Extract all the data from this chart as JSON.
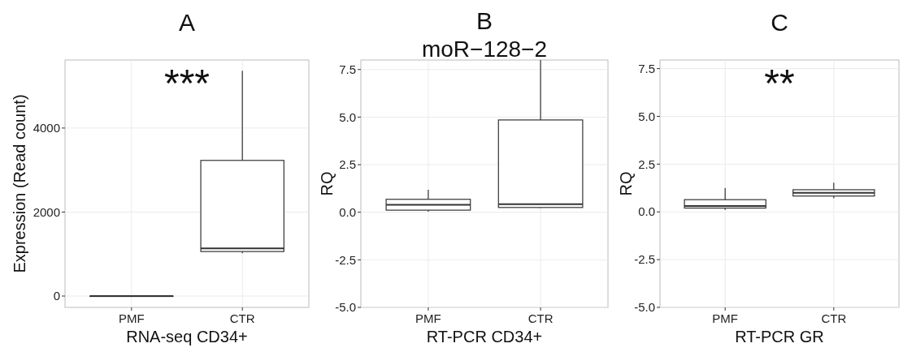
{
  "chart_data": [
    {
      "type": "box",
      "title": "A",
      "xlabel": "RNA-seq CD34+",
      "ylabel": "Expression (Read count)",
      "categories": [
        "PMF",
        "CTR"
      ],
      "ylim": [
        -270,
        5620
      ],
      "yticks": [
        0,
        2000,
        4000
      ],
      "grid": true,
      "boxes": [
        {
          "low": 0,
          "q1": 0,
          "median": 0,
          "q3": 0,
          "high": 0
        },
        {
          "low": 1020,
          "q1": 1060,
          "median": 1135,
          "q3": 3230,
          "high": 5365
        }
      ],
      "annotations": [
        "***"
      ]
    },
    {
      "type": "box",
      "title": "B",
      "subtitle": "moR−128−2",
      "xlabel": "RT-PCR CD34+",
      "ylabel": "RQ",
      "categories": [
        "PMF",
        "CTR"
      ],
      "ylim": [
        -5,
        8
      ],
      "yticks": [
        {
          "value": -5,
          "label": "-5.0"
        },
        {
          "value": -2.5,
          "label": "-2.5"
        },
        {
          "value": 0,
          "label": "0.0"
        },
        2.5,
        {
          "value": 5,
          "label": "5.0"
        },
        7.5
      ],
      "grid": true,
      "boxes": [
        {
          "low": 0.03,
          "q1": 0.11,
          "median": 0.39,
          "q3": 0.68,
          "high": 1.18
        },
        {
          "low": 0.22,
          "q1": 0.25,
          "median": 0.42,
          "q3": 4.85,
          "high": 8
        }
      ]
    },
    {
      "type": "box",
      "title": "C",
      "xlabel": "RT-PCR GR",
      "ylabel": "RQ",
      "categories": [
        "PMF",
        "CTR"
      ],
      "ylim": [
        -5,
        7.95
      ],
      "yticks": [
        {
          "value": -5,
          "label": "-5.0"
        },
        {
          "value": -2.5,
          "label": "-2.5"
        },
        {
          "value": 0,
          "label": "0.0"
        },
        2.5,
        {
          "value": 5,
          "label": "5.0"
        },
        7.5
      ],
      "grid": true,
      "boxes": [
        {
          "low": 0.11,
          "q1": 0.2,
          "median": 0.31,
          "q3": 0.64,
          "high": 1.25
        },
        {
          "low": 0.71,
          "q1": 0.83,
          "median": 1.0,
          "q3": 1.16,
          "high": 1.53
        }
      ],
      "annotations": [
        "**"
      ]
    }
  ]
}
